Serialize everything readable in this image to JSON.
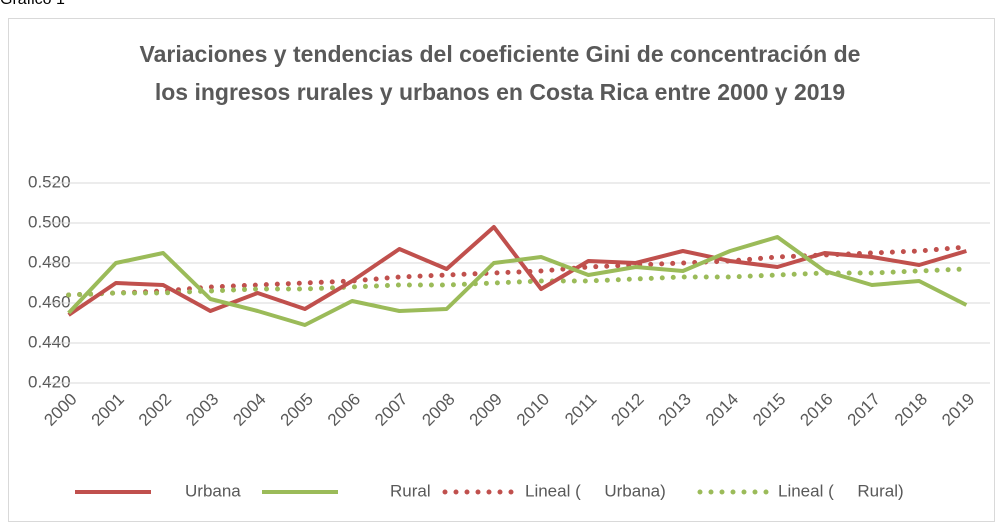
{
  "caption": "Gráfico 1",
  "chart_data": {
    "type": "line",
    "title": "Variaciones y tendencias del coeficiente Gini de concentración de los ingresos rurales y urbanos en Costa Rica entre 2000 y 2019",
    "categories": [
      "2000",
      "2001",
      "2002",
      "2003",
      "2004",
      "2005",
      "2006",
      "2007",
      "2008",
      "2009",
      "2010",
      "2011",
      "2012",
      "2013",
      "2014",
      "2015",
      "2016",
      "2017",
      "2018",
      "2019"
    ],
    "ylim": [
      0.42,
      0.52
    ],
    "yticks": [
      {
        "value": 0.42,
        "label": "0.420"
      },
      {
        "value": 0.44,
        "label": "0.440"
      },
      {
        "value": 0.46,
        "label": "0.460"
      },
      {
        "value": 0.48,
        "label": "0.480"
      },
      {
        "value": 0.5,
        "label": "0.500"
      },
      {
        "value": 0.52,
        "label": "0.520"
      }
    ],
    "grid": true,
    "legend": "bottom",
    "series": [
      {
        "name": "Urbana",
        "color": "#c0504d",
        "dotted": false,
        "values": [
          0.454,
          0.47,
          0.469,
          0.456,
          0.465,
          0.457,
          0.471,
          0.487,
          0.477,
          0.498,
          0.467,
          0.481,
          0.48,
          0.486,
          0.481,
          0.478,
          0.485,
          0.483,
          0.479,
          0.486
        ]
      },
      {
        "name": "Rural",
        "color": "#9bbb59",
        "dotted": false,
        "values": [
          0.455,
          0.48,
          0.485,
          0.462,
          0.456,
          0.449,
          0.461,
          0.456,
          0.457,
          0.48,
          0.483,
          0.474,
          0.478,
          0.476,
          0.486,
          0.493,
          0.476,
          0.469,
          0.471,
          0.459
        ]
      },
      {
        "name": "Lineal (     Urbana)",
        "color": "#c0504d",
        "dotted": true,
        "values": [
          0.464,
          0.465,
          0.466,
          0.468,
          0.469,
          0.47,
          0.471,
          0.473,
          0.474,
          0.475,
          0.476,
          0.478,
          0.479,
          0.48,
          0.481,
          0.483,
          0.484,
          0.485,
          0.486,
          0.488
        ]
      },
      {
        "name": "Lineal (     Rural)",
        "color": "#9bbb59",
        "dotted": true,
        "values": [
          0.464,
          0.465,
          0.465,
          0.466,
          0.467,
          0.467,
          0.468,
          0.469,
          0.469,
          0.47,
          0.471,
          0.471,
          0.472,
          0.473,
          0.473,
          0.474,
          0.475,
          0.475,
          0.476,
          0.477
        ]
      }
    ]
  }
}
